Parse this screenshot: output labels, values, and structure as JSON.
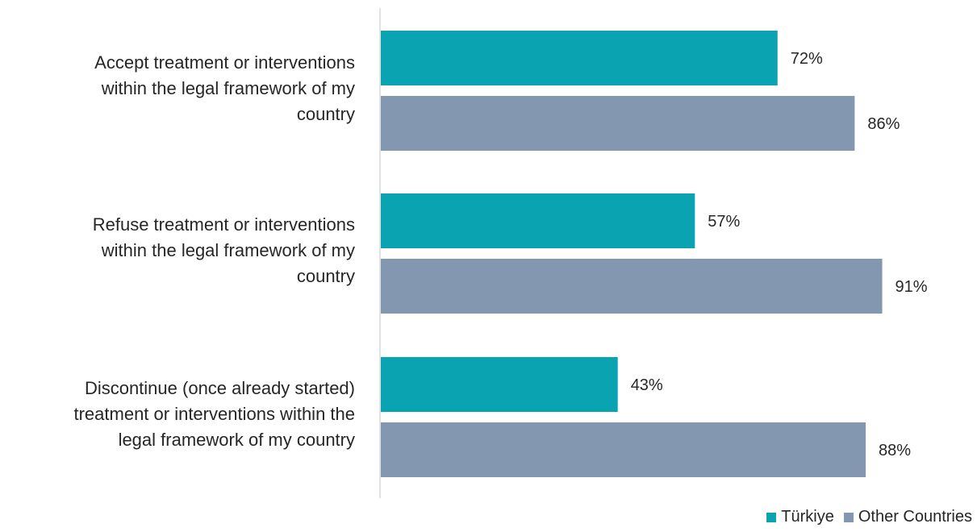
{
  "chart_data": {
    "type": "bar",
    "orientation": "horizontal",
    "categories": [
      "Accept treatment or interventions within the legal framework of my country",
      "Refuse treatment or interventions within the legal framework of my country",
      "Discontinue (once already started) treatment or interventions within the legal framework of my country"
    ],
    "category_lines": [
      [
        "Accept treatment or interventions",
        "within the legal framework of my",
        "country"
      ],
      [
        "Refuse treatment or interventions",
        "within the legal framework of my",
        "country"
      ],
      [
        "Discontinue (once already started)",
        "treatment or interventions within the",
        "legal framework of my country"
      ]
    ],
    "series": [
      {
        "name": "Türkiye",
        "values": [
          72,
          57,
          43
        ],
        "labels": [
          "72%",
          "57%",
          "43%"
        ],
        "color": "#0aa3b2"
      },
      {
        "name": "Other Countries",
        "values": [
          86,
          91,
          88
        ],
        "labels": [
          "86%",
          "91%",
          "88%"
        ],
        "color": "#8497b0"
      }
    ],
    "xlim": [
      0,
      100
    ],
    "grid": false,
    "legend_position": "bottom-right",
    "title": "",
    "xlabel": "",
    "ylabel": ""
  }
}
